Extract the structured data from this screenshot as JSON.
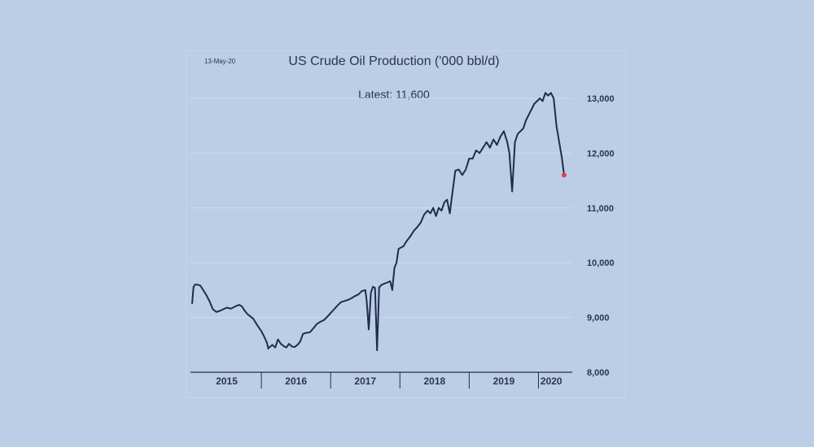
{
  "chart_data": {
    "type": "line",
    "title": "US Crude Oil Production ('000 bbl/d)",
    "date_note": "13-May-20",
    "latest_label": "Latest:",
    "latest_value": "11,600",
    "ylim": [
      8000,
      13000
    ],
    "yticks": [
      8000,
      9000,
      10000,
      11000,
      12000,
      13000
    ],
    "ytick_labels": [
      "8,000",
      "9,000",
      "10,000",
      "11,000",
      "12,000",
      "13,000"
    ],
    "x_start": 2015.0,
    "x_end": 2020.37,
    "years": [
      "2015",
      "2016",
      "2017",
      "2018",
      "2019",
      "2020"
    ],
    "grid": true,
    "line_color": "#1f2d4d",
    "latest_marker_color": "#d64545",
    "series": [
      {
        "values": [
          [
            2015.0,
            9250
          ],
          [
            2015.02,
            9550
          ],
          [
            2015.04,
            9600
          ],
          [
            2015.08,
            9600
          ],
          [
            2015.12,
            9580
          ],
          [
            2015.16,
            9500
          ],
          [
            2015.2,
            9420
          ],
          [
            2015.25,
            9300
          ],
          [
            2015.3,
            9150
          ],
          [
            2015.35,
            9100
          ],
          [
            2015.4,
            9120
          ],
          [
            2015.45,
            9150
          ],
          [
            2015.5,
            9180
          ],
          [
            2015.56,
            9160
          ],
          [
            2015.62,
            9200
          ],
          [
            2015.68,
            9230
          ],
          [
            2015.72,
            9200
          ],
          [
            2015.76,
            9120
          ],
          [
            2015.8,
            9060
          ],
          [
            2015.84,
            9020
          ],
          [
            2015.88,
            8980
          ],
          [
            2015.92,
            8900
          ],
          [
            2015.96,
            8820
          ],
          [
            2016.0,
            8750
          ],
          [
            2016.04,
            8650
          ],
          [
            2016.08,
            8540
          ],
          [
            2016.1,
            8430
          ],
          [
            2016.12,
            8460
          ],
          [
            2016.16,
            8500
          ],
          [
            2016.2,
            8450
          ],
          [
            2016.24,
            8600
          ],
          [
            2016.28,
            8520
          ],
          [
            2016.32,
            8480
          ],
          [
            2016.36,
            8450
          ],
          [
            2016.4,
            8520
          ],
          [
            2016.44,
            8470
          ],
          [
            2016.48,
            8460
          ],
          [
            2016.52,
            8500
          ],
          [
            2016.56,
            8560
          ],
          [
            2016.6,
            8700
          ],
          [
            2016.65,
            8720
          ],
          [
            2016.7,
            8730
          ],
          [
            2016.75,
            8800
          ],
          [
            2016.8,
            8880
          ],
          [
            2016.85,
            8920
          ],
          [
            2016.9,
            8950
          ],
          [
            2016.95,
            9010
          ],
          [
            2017.0,
            9080
          ],
          [
            2017.05,
            9150
          ],
          [
            2017.1,
            9220
          ],
          [
            2017.15,
            9280
          ],
          [
            2017.2,
            9300
          ],
          [
            2017.25,
            9320
          ],
          [
            2017.3,
            9350
          ],
          [
            2017.35,
            9390
          ],
          [
            2017.4,
            9420
          ],
          [
            2017.45,
            9480
          ],
          [
            2017.5,
            9500
          ],
          [
            2017.52,
            9300
          ],
          [
            2017.55,
            8780
          ],
          [
            2017.58,
            9450
          ],
          [
            2017.61,
            9560
          ],
          [
            2017.64,
            9540
          ],
          [
            2017.67,
            8400
          ],
          [
            2017.7,
            9550
          ],
          [
            2017.74,
            9600
          ],
          [
            2017.78,
            9620
          ],
          [
            2017.82,
            9640
          ],
          [
            2017.86,
            9660
          ],
          [
            2017.89,
            9500
          ],
          [
            2017.92,
            9900
          ],
          [
            2017.95,
            10000
          ],
          [
            2017.98,
            10250
          ],
          [
            2018.05,
            10300
          ],
          [
            2018.1,
            10400
          ],
          [
            2018.15,
            10480
          ],
          [
            2018.2,
            10580
          ],
          [
            2018.25,
            10650
          ],
          [
            2018.3,
            10730
          ],
          [
            2018.35,
            10880
          ],
          [
            2018.4,
            10950
          ],
          [
            2018.44,
            10900
          ],
          [
            2018.48,
            11000
          ],
          [
            2018.52,
            10850
          ],
          [
            2018.56,
            11000
          ],
          [
            2018.6,
            10950
          ],
          [
            2018.64,
            11100
          ],
          [
            2018.68,
            11150
          ],
          [
            2018.72,
            10900
          ],
          [
            2018.75,
            11200
          ],
          [
            2018.8,
            11680
          ],
          [
            2018.85,
            11700
          ],
          [
            2018.9,
            11600
          ],
          [
            2018.95,
            11700
          ],
          [
            2019.0,
            11900
          ],
          [
            2019.05,
            11900
          ],
          [
            2019.1,
            12050
          ],
          [
            2019.15,
            12000
          ],
          [
            2019.2,
            12100
          ],
          [
            2019.25,
            12200
          ],
          [
            2019.3,
            12100
          ],
          [
            2019.35,
            12250
          ],
          [
            2019.4,
            12150
          ],
          [
            2019.45,
            12300
          ],
          [
            2019.5,
            12400
          ],
          [
            2019.55,
            12200
          ],
          [
            2019.58,
            12000
          ],
          [
            2019.62,
            11300
          ],
          [
            2019.66,
            12200
          ],
          [
            2019.7,
            12350
          ],
          [
            2019.74,
            12400
          ],
          [
            2019.78,
            12450
          ],
          [
            2019.82,
            12600
          ],
          [
            2019.86,
            12700
          ],
          [
            2019.9,
            12800
          ],
          [
            2019.94,
            12900
          ],
          [
            2019.98,
            12950
          ],
          [
            2020.02,
            13000
          ],
          [
            2020.06,
            12950
          ],
          [
            2020.1,
            13100
          ],
          [
            2020.14,
            13050
          ],
          [
            2020.18,
            13100
          ],
          [
            2020.22,
            13000
          ],
          [
            2020.26,
            12500
          ],
          [
            2020.3,
            12200
          ],
          [
            2020.34,
            11900
          ],
          [
            2020.37,
            11600
          ]
        ]
      }
    ]
  }
}
